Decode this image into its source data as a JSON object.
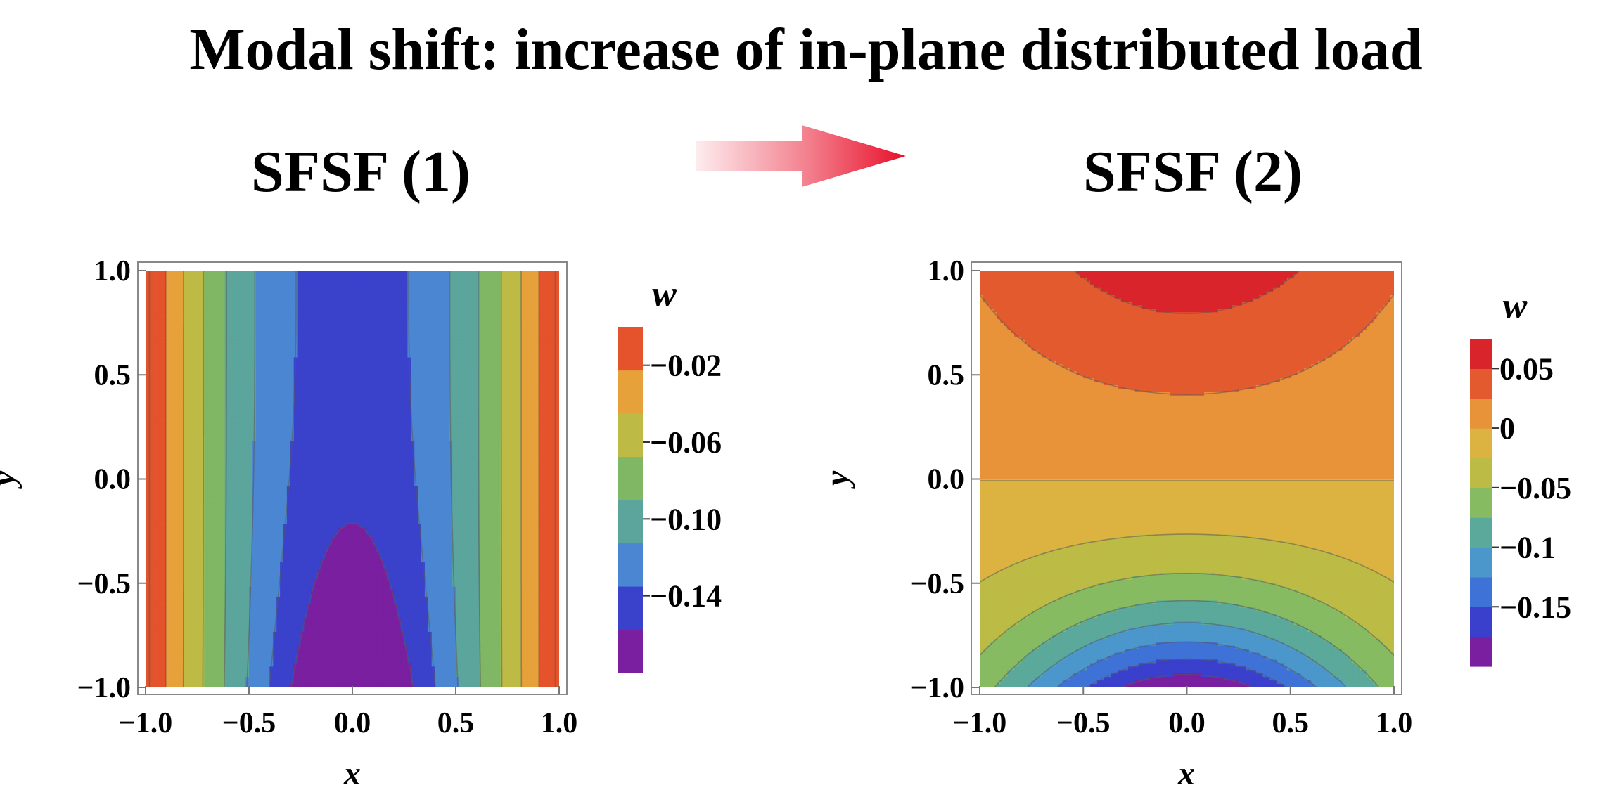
{
  "title": "Modal shift: increase of in-plane distributed load",
  "transition_arrow_icon": "right-arrow-icon",
  "chart_data": [
    {
      "type": "heatmap",
      "title": "SFSF (1)",
      "xlabel": "x",
      "ylabel": "y",
      "xlim": [
        -1.0,
        1.0
      ],
      "ylim": [
        -1.0,
        1.0
      ],
      "xticks": [
        "−1.0",
        "−0.5",
        "0.0",
        "0.5",
        "1.0"
      ],
      "yticks": [
        "−1.0",
        "−0.5",
        "0.0",
        "0.5",
        "1.0"
      ],
      "legend_title": "w",
      "legend_position": "right",
      "legend_levels": [
        -0.18,
        -0.16,
        -0.14,
        -0.12,
        -0.1,
        -0.08,
        -0.06,
        -0.04,
        -0.02,
        0.0
      ],
      "legend_colors": [
        "#7a1fa0",
        "#3a42cc",
        "#4a86d2",
        "#5ba59c",
        "#7fb765",
        "#bdbb45",
        "#e7a13a",
        "#e4532c"
      ],
      "legend_tick_values": [
        -0.14,
        -0.1,
        -0.06,
        -0.02
      ],
      "legend_tick_labels": [
        "−0.14",
        "−0.10",
        "−0.06",
        "−0.02"
      ],
      "grid": false
    },
    {
      "type": "heatmap",
      "title": "SFSF (2)",
      "xlabel": "x",
      "ylabel": "y",
      "xlim": [
        -1.0,
        1.0
      ],
      "ylim": [
        -1.0,
        1.0
      ],
      "xticks": [
        "−1.0",
        "−0.5",
        "0.0",
        "0.5",
        "1.0"
      ],
      "yticks": [
        "−1.0",
        "−0.5",
        "0.0",
        "0.5",
        "1.0"
      ],
      "legend_title": "w",
      "legend_position": "right",
      "legend_levels": [
        -0.2,
        -0.175,
        -0.15,
        -0.125,
        -0.1,
        -0.075,
        -0.05,
        -0.025,
        0.0,
        0.025,
        0.05,
        0.075
      ],
      "legend_colors": [
        "#7a1fa0",
        "#3a3fcc",
        "#3f72d6",
        "#4b97cc",
        "#5aa99b",
        "#86bb62",
        "#bcbb45",
        "#dcb340",
        "#e8923a",
        "#e25a2e",
        "#d8242a"
      ],
      "legend_tick_values": [
        0.05,
        0.0,
        -0.05,
        -0.1,
        -0.15
      ],
      "legend_tick_labels": [
        "0.05",
        "0",
        "−0.05",
        "−0.1",
        "−0.15"
      ],
      "grid": false
    }
  ]
}
